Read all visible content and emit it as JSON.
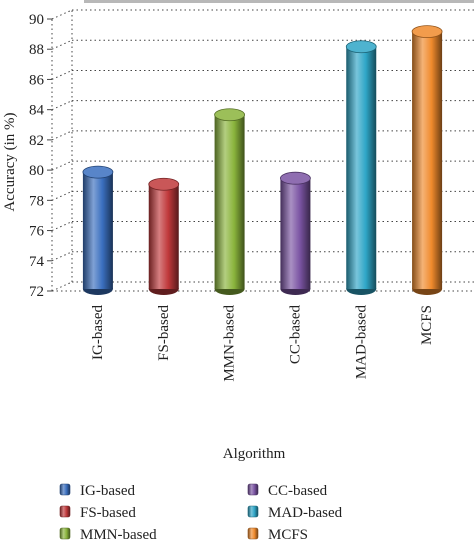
{
  "chart_data": {
    "type": "bar",
    "title": "",
    "xlabel": "Algorithm",
    "ylabel": "Accuracy (in %)",
    "ylim": [
      72,
      90
    ],
    "yticks": [
      72,
      74,
      76,
      78,
      80,
      82,
      84,
      86,
      88,
      90
    ],
    "grid": true,
    "legend_position": "bottom",
    "categories": [
      "IG-based",
      "FS-based",
      "MMN-based",
      "CC-based",
      "MAD-based",
      "MCFS"
    ],
    "values": [
      79.6,
      78.8,
      83.4,
      79.2,
      87.9,
      88.9
    ],
    "colors": [
      "#3a6fbf",
      "#c0393b",
      "#8ab43c",
      "#7b54a3",
      "#2fa6c7",
      "#f08a2c"
    ]
  }
}
